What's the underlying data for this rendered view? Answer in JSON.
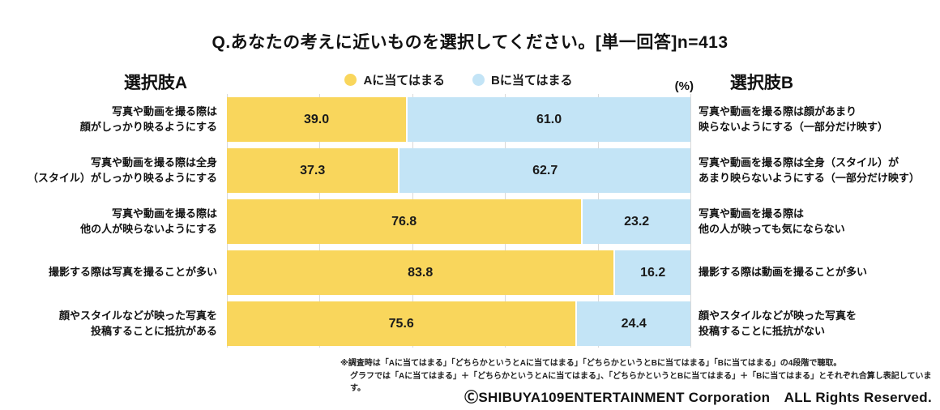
{
  "title": "Q.あなたの考えに近いものを選択してください。[単一回答]n=413",
  "headers": {
    "choice_a": "選択肢A",
    "choice_b": "選択肢B",
    "unit": "(%)"
  },
  "legend": {
    "a_label": "Aに当てはまる",
    "b_label": "Bに当てはまる"
  },
  "colors": {
    "a": "#F9D65C",
    "b": "#C3E4F6",
    "grid": "#D9D9D9",
    "text": "#1A1A1A"
  },
  "chart_data": {
    "type": "bar",
    "orientation": "horizontal",
    "stacked": true,
    "percent_total": 100,
    "n": 413,
    "xlim": [
      0,
      100
    ],
    "gridline_interval": 20,
    "legend_position": "top-center",
    "series_names": [
      "Aに当てはまる",
      "Bに当てはまる"
    ],
    "rows": [
      {
        "label_a": "写真や動画を撮る際は\n顔がしっかり映るようにする",
        "a": 39.0,
        "b": 61.0,
        "label_b": "写真や動画を撮る際は顔があまり\n映らないようにする（一部分だけ映す）"
      },
      {
        "label_a": "写真や動画を撮る際は全身\n（スタイル）がしっかり映るようにする",
        "a": 37.3,
        "b": 62.7,
        "label_b": "写真や動画を撮る際は全身（スタイル）が\nあまり映らないようにする（一部分だけ映す）"
      },
      {
        "label_a": "写真や動画を撮る際は\n他の人が映らないようにする",
        "a": 76.8,
        "b": 23.2,
        "label_b": "写真や動画を撮る際は\n他の人が映っても気にならない"
      },
      {
        "label_a": "撮影する際は写真を撮ることが多い",
        "a": 83.8,
        "b": 16.2,
        "label_b": "撮影する際は動画を撮ることが多い"
      },
      {
        "label_a": "顔やスタイルなどが映った写真を\n投稿することに抵抗がある",
        "a": 75.6,
        "b": 24.4,
        "label_b": "顔やスタイルなどが映った写真を\n投稿することに抵抗がない"
      }
    ]
  },
  "footnotes": [
    "※調査時は「Aに当てはまる」「どちらかというとAに当てはまる」「どちらかというとBに当てはまる」「Bに当てはまる」の4段階で聴取。",
    "グラフでは「Aに当てはまる」＋「どちらかというとAに当てはまる」、「どちらかというとBに当てはまる」＋「Bに当てはまる」とそれぞれ合算し表記しています。"
  ],
  "copyright": "ⒸSHIBUYA109ENTERTAINMENT Corporation　ALL Rights Reserved."
}
